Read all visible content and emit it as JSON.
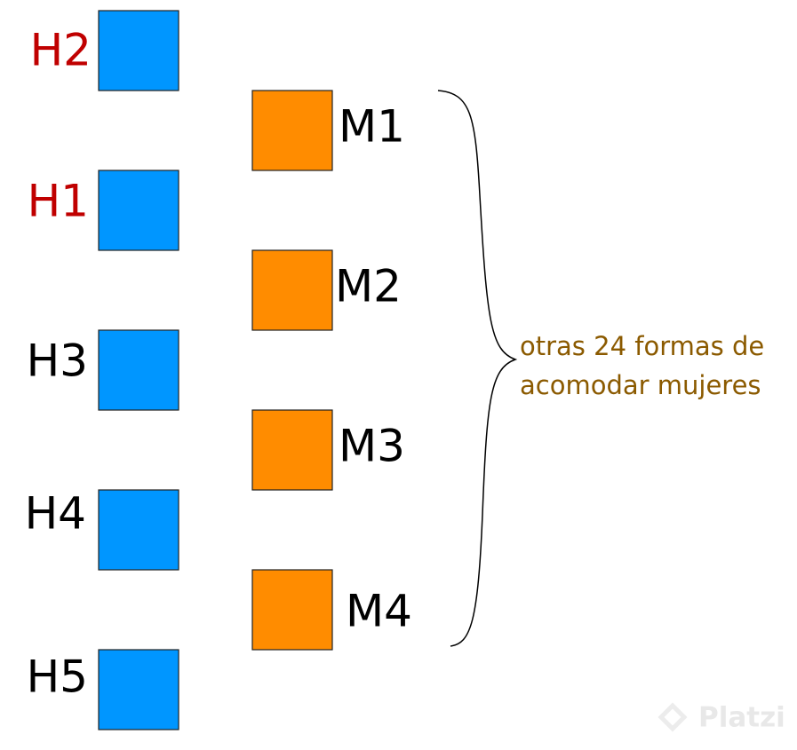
{
  "men": [
    {
      "label": "H2"
    },
    {
      "label": "H1"
    },
    {
      "label": "H3"
    },
    {
      "label": "H4"
    },
    {
      "label": "H5"
    }
  ],
  "women": [
    {
      "label": "M1"
    },
    {
      "label": "M2"
    },
    {
      "label": "M3"
    },
    {
      "label": "M4"
    }
  ],
  "annotation": {
    "lines": [
      "otras 24 formas de",
      "acomodar mujeres"
    ]
  },
  "watermark": "Platzi"
}
